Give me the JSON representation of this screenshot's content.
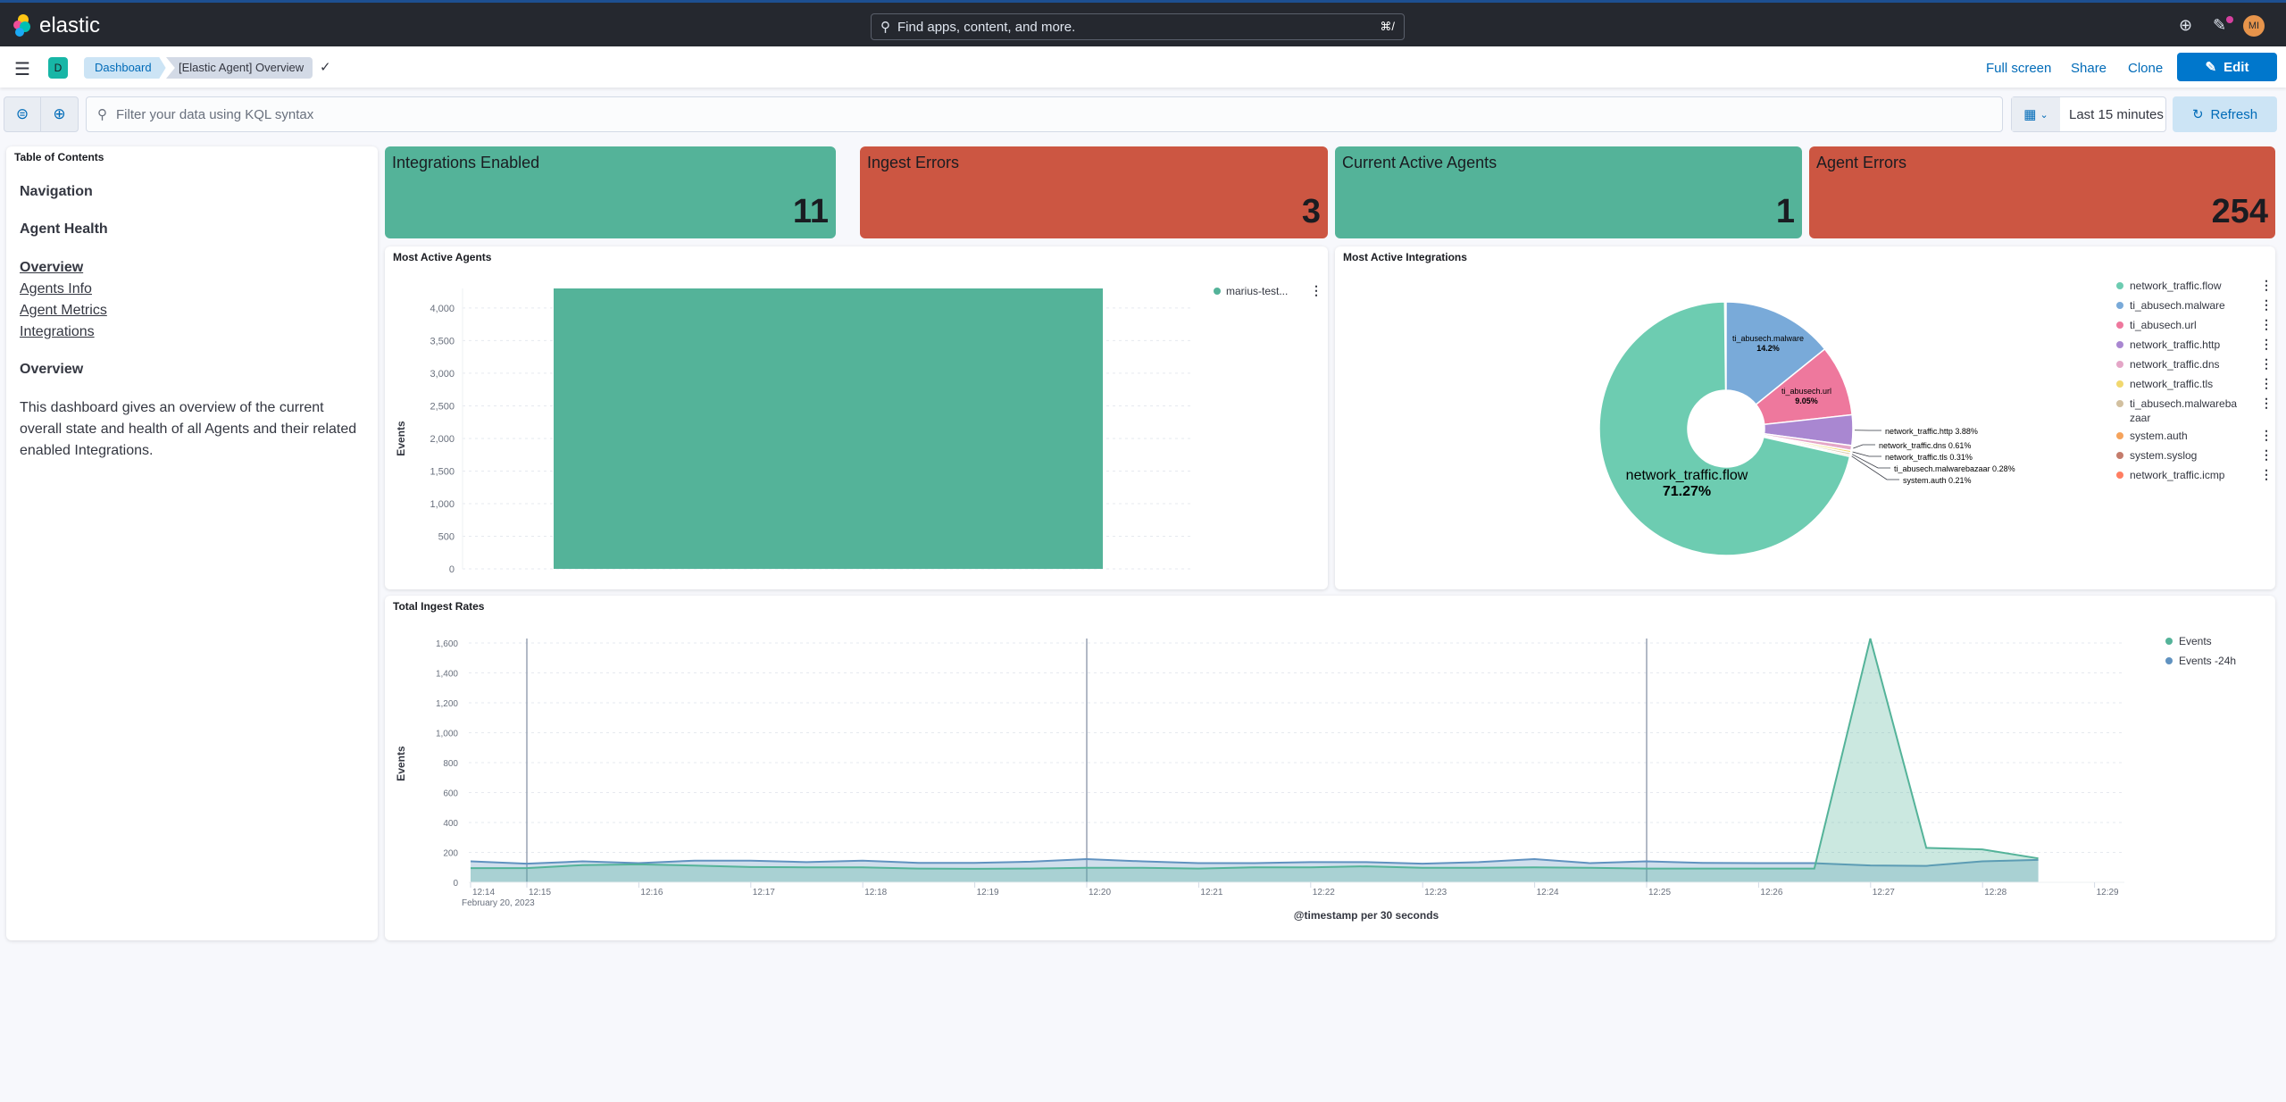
{
  "header": {
    "logo_text": "elastic",
    "search_placeholder": "Find apps, content, and more.",
    "search_shortcut": "⌘/",
    "avatar_initials": "MI"
  },
  "nav": {
    "space_badge": "D",
    "breadcrumbs": [
      "Dashboard",
      "[Elastic Agent] Overview"
    ],
    "actions": {
      "fullscreen": "Full screen",
      "share": "Share",
      "clone": "Clone",
      "edit": "Edit"
    }
  },
  "query": {
    "placeholder": "Filter your data using KQL syntax",
    "time_range": "Last 15 minutes",
    "refresh": "Refresh"
  },
  "toc": {
    "title": "Table of Contents",
    "headings": [
      "Navigation",
      "Agent Health"
    ],
    "links": [
      "Overview",
      "Agents Info",
      "Agent Metrics",
      "Integrations"
    ],
    "section": "Overview",
    "description": "This dashboard gives an overview of the current overall state and health of all Agents and their related enabled Integrations."
  },
  "metrics": [
    {
      "label": "Integrations Enabled",
      "value": "11",
      "color": "#54b399"
    },
    {
      "label": "Ingest Errors",
      "value": "3",
      "color": "#cc5642"
    },
    {
      "label": "Current Active Agents",
      "value": "1",
      "color": "#54b399"
    },
    {
      "label": "Agent Errors",
      "value": "254",
      "color": "#cc5642"
    }
  ],
  "chart_data": [
    {
      "type": "bar",
      "title": "Most Active Agents",
      "ylabel": "Events",
      "categories": [
        "marius-test..."
      ],
      "values": [
        4300
      ],
      "ylim": [
        0,
        4300
      ],
      "yticks": [
        "0",
        "500",
        "1,000",
        "1,500",
        "2,000",
        "2,500",
        "3,000",
        "3,500",
        "4,000"
      ],
      "grid": true,
      "legend": "top-right",
      "legend_entries": [
        "marius-test..."
      ],
      "color": "#54b399"
    },
    {
      "type": "pie",
      "title": "Most Active Integrations",
      "donut": true,
      "legend": "right",
      "slices": [
        {
          "label": "ti_abusech.malware",
          "percent": 14.2,
          "pct_label": "14.2%",
          "color": "#79aad9"
        },
        {
          "label": "ti_abusech.url",
          "percent": 9.05,
          "pct_label": "9.05%",
          "color": "#ee789d"
        },
        {
          "label": "network_traffic.http",
          "percent": 3.88,
          "pct_label": "3.88%",
          "color": "#a987d1"
        },
        {
          "label": "network_traffic.dns",
          "percent": 0.61,
          "pct_label": "0.61%",
          "color": "#e4a6c7"
        },
        {
          "label": "network_traffic.tls",
          "percent": 0.31,
          "pct_label": "0.31%",
          "color": "#f1d86f"
        },
        {
          "label": "ti_abusech.malwarebazaar",
          "percent": 0.28,
          "pct_label": "0.28%",
          "color": "#d2c0a0"
        },
        {
          "label": "system.auth",
          "percent": 0.21,
          "pct_label": "0.21%",
          "color": "#f5a35c"
        },
        {
          "label": "system.syslog",
          "percent": null,
          "pct_label": "",
          "color": "#c47c6c"
        },
        {
          "label": "network_traffic.icmp",
          "percent": null,
          "pct_label": "",
          "color": "#ff7e62"
        },
        {
          "label": "network_traffic.flow",
          "percent": 71.27,
          "pct_label": "71.27%",
          "color": "#6dccb1"
        }
      ],
      "legend_entries": [
        "network_traffic.flow",
        "ti_abusech.malware",
        "ti_abusech.url",
        "network_traffic.http",
        "network_traffic.dns",
        "network_traffic.tls",
        "ti_abusech.malwarebazaar",
        "system.auth",
        "system.syslog",
        "network_traffic.icmp"
      ]
    },
    {
      "type": "area",
      "title": "Total Ingest Rates",
      "ylabel": "Events",
      "xlabel": "@timestamp per 30 seconds",
      "date_label": "February 20, 2023",
      "ylim": [
        0,
        1650
      ],
      "yticks": [
        0,
        200,
        400,
        600,
        800,
        1000,
        1200,
        1400,
        1600
      ],
      "xticks": [
        "12:14",
        "12:15",
        "12:16",
        "12:17",
        "12:18",
        "12:19",
        "12:20",
        "12:21",
        "12:22",
        "12:23",
        "12:24",
        "12:25",
        "12:26",
        "12:27",
        "12:28",
        "12:29"
      ],
      "x": [
        "12:14:30",
        "12:15:00",
        "12:15:30",
        "12:16:00",
        "12:16:30",
        "12:17:00",
        "12:17:30",
        "12:18:00",
        "12:18:30",
        "12:19:00",
        "12:19:30",
        "12:20:00",
        "12:20:30",
        "12:21:00",
        "12:21:30",
        "12:22:00",
        "12:22:30",
        "12:23:00",
        "12:23:30",
        "12:24:00",
        "12:24:30",
        "12:25:00",
        "12:25:30",
        "12:26:00",
        "12:26:30",
        "12:27:00",
        "12:27:30",
        "12:28:00",
        "12:28:30"
      ],
      "annotations": [
        "12:15",
        "12:20",
        "12:25"
      ],
      "grid": true,
      "legend": "top-right",
      "series": [
        {
          "name": "Events",
          "color": "#54b399",
          "values": [
            95,
            95,
            115,
            120,
            112,
            102,
            100,
            100,
            92,
            90,
            92,
            97,
            97,
            92,
            100,
            100,
            107,
            97,
            97,
            100,
            97,
            92,
            92,
            92,
            92,
            1630,
            230,
            220,
            160
          ]
        },
        {
          "name": "Events -24h",
          "color": "#6092c0",
          "values": [
            140,
            125,
            140,
            128,
            145,
            145,
            135,
            145,
            130,
            130,
            138,
            155,
            140,
            128,
            128,
            135,
            135,
            125,
            135,
            155,
            128,
            140,
            130,
            128,
            128,
            113,
            110,
            140,
            150
          ]
        }
      ]
    }
  ]
}
